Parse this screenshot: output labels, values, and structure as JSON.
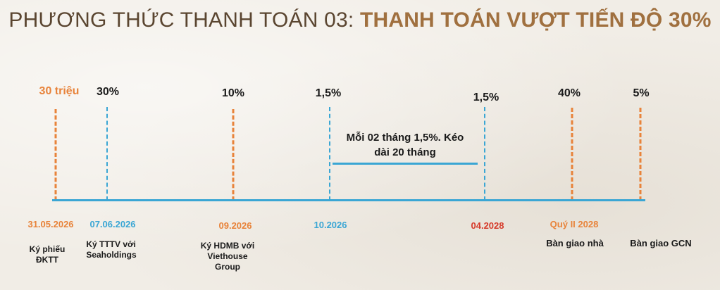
{
  "title": {
    "prefix": "PHƯƠNG THỨC THANH TOÁN 03: ",
    "highlight": "THANH TOÁN VƯỢT TIẾN ĐỘ 30%"
  },
  "colors": {
    "orange": "#e8833a",
    "blue": "#3aa6d4",
    "red": "#d63a2a",
    "title_brown": "#5a4530",
    "title_highlight": "#a0703f"
  },
  "milestones": [
    {
      "amount": "30 triệu",
      "date": "31.05.2026",
      "desc_1": "Ký phiếu",
      "desc_2": "ĐKTT",
      "desc_3": ""
    },
    {
      "amount": "30%",
      "date": "07.06.2026",
      "desc_1": "Ký TTTV với",
      "desc_2": "Seaholdings",
      "desc_3": ""
    },
    {
      "amount": "10%",
      "date": "09.2026",
      "desc_1": "Ký HDMB với",
      "desc_2": "Viethouse",
      "desc_3": "Group"
    },
    {
      "amount": "1,5%",
      "date": "10.2026",
      "desc_1": "",
      "desc_2": "",
      "desc_3": ""
    },
    {
      "amount": "1,5%",
      "date": "04.2028",
      "desc_1": "",
      "desc_2": "",
      "desc_3": ""
    },
    {
      "amount": "40%",
      "date": "Quý II 2028",
      "desc_1": "Bàn giao nhà",
      "desc_2": "",
      "desc_3": ""
    },
    {
      "amount": "5%",
      "date": "",
      "desc_1": "Bàn giao GCN",
      "desc_2": "",
      "desc_3": ""
    }
  ],
  "installment_note": {
    "line_1": "Mỗi 02 tháng 1,5%. Kéo",
    "line_2": "dài 20 tháng"
  }
}
